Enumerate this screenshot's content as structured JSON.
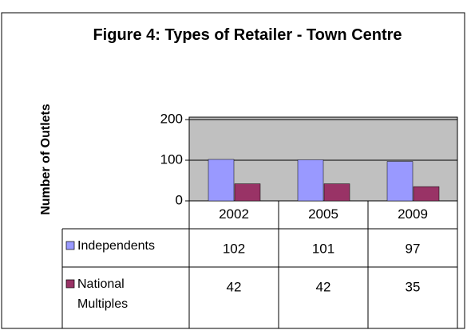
{
  "chart_data": {
    "type": "bar",
    "title": "Figure 4: Types of Retailer - Town Centre",
    "y_label": "Number of Outlets",
    "categories": [
      "2002",
      "2005",
      "2009"
    ],
    "series": [
      {
        "name": "Independents",
        "color": "#9999ff",
        "values": [
          102,
          101,
          97
        ]
      },
      {
        "name": "National Multiples",
        "color": "#993366",
        "values": [
          42,
          42,
          35
        ]
      }
    ],
    "ylim": [
      0,
      200
    ],
    "yticks": [
      0,
      100,
      200
    ],
    "grid": true,
    "plot_background": "#c0c0c0"
  }
}
